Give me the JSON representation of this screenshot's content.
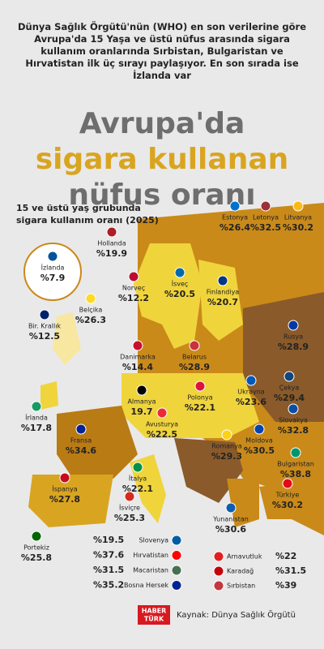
{
  "header": {
    "intro": "Dünya Sağlık Örgütü'nün (WHO) en son verilerine göre Avrupa'da 15 Yaşa ve üstü nüfus arasında sigara kullanım oranlarında Sırbistan, Bulgaristan ve Hırvatistan ilk üç sırayı paylaşıyor. En son sırada ise İzlanda var",
    "title_lines": [
      "Avrupa'da",
      "sigara kullanan",
      "nüfus oranı"
    ]
  },
  "map": {
    "subtitle_lines": [
      "15 ve üstü yaş grubunda",
      "sigara kullanım oranı (2025)"
    ],
    "countries": [
      {
        "name": "Estonya",
        "value": "%26.4"
      },
      {
        "name": "Letonya",
        "value": "%32.5"
      },
      {
        "name": "Litvanya",
        "value": "%30.2"
      },
      {
        "name": "Hollanda",
        "value": "%19.9"
      },
      {
        "name": "İzlanda",
        "value": "%7.9"
      },
      {
        "name": "İsveç",
        "value": "%20.5"
      },
      {
        "name": "Finlandiya",
        "value": "%20.7"
      },
      {
        "name": "Norveç",
        "value": "%12.2"
      },
      {
        "name": "Bir. Krallık",
        "value": "%12.5"
      },
      {
        "name": "Belçika",
        "value": "%26.3"
      },
      {
        "name": "Rusya",
        "value": "%28.9"
      },
      {
        "name": "Danimarka",
        "value": "%14.4"
      },
      {
        "name": "Belarus",
        "value": "%28.9"
      },
      {
        "name": "Çekya",
        "value": "%29.4"
      },
      {
        "name": "Almanya",
        "value": "19.7"
      },
      {
        "name": "Polonya",
        "value": "%22.1"
      },
      {
        "name": "Ukrayna",
        "value": "%23.6"
      },
      {
        "name": "İrlanda",
        "value": "%17.8"
      },
      {
        "name": "Slovakya",
        "value": "%32.8"
      },
      {
        "name": "Avusturya",
        "value": "%22.5"
      },
      {
        "name": "Moldova",
        "value": "%30.5"
      },
      {
        "name": "Fransa",
        "value": "%34.6"
      },
      {
        "name": "Romanya",
        "value": "%29.3"
      },
      {
        "name": "Bulgaristan",
        "value": "%38.8"
      },
      {
        "name": "İspanya",
        "value": "%27.8"
      },
      {
        "name": "İtalya",
        "value": "%22.1"
      },
      {
        "name": "Türkiye",
        "value": "%30.2"
      },
      {
        "name": "İsviçre",
        "value": "%25.3"
      },
      {
        "name": "Yunanistan",
        "value": "%30.6"
      },
      {
        "name": "Portekiz",
        "value": "%25.8"
      }
    ],
    "list_left": [
      {
        "value": "%19.5",
        "name": "Slovenya"
      },
      {
        "value": "%37.6",
        "name": "Hırvatistan"
      },
      {
        "value": "%31.5",
        "name": "Macaristan"
      },
      {
        "value": "%35.2",
        "name": "Bosna Hersek"
      }
    ],
    "list_right": [
      {
        "name": "Arnavutluk",
        "value": "%22"
      },
      {
        "name": "Karadağ",
        "value": "%31.5"
      },
      {
        "name": "Sırbistan",
        "value": "%39"
      }
    ]
  },
  "footer": {
    "logo_lines": [
      "HABER",
      "TÜRK"
    ],
    "source": "Kaynak: Dünya Sağlık Örgütü"
  }
}
